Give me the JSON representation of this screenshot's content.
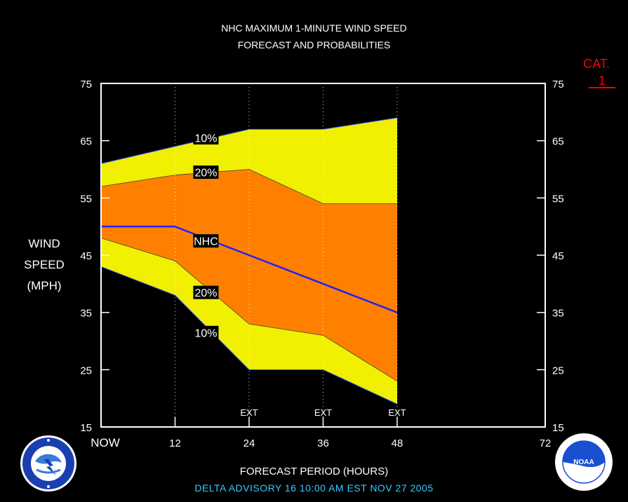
{
  "header": {
    "title_line1": "NHC MAXIMUM 1-MINUTE WIND SPEED",
    "title_line2": "FORECAST AND PROBABILITIES"
  },
  "category": {
    "label": "CAT.",
    "value": "1"
  },
  "ylabel_lines": [
    "WIND",
    "SPEED",
    "(MPH)"
  ],
  "xlabel": "FORECAST PERIOD (HOURS)",
  "footer": "DELTA   ADVISORY  16  10:00  AM  EST  NOV  27  2005",
  "colors": {
    "outer_band": "#f0f000",
    "inner_band": "#ff8000",
    "nhc_line": "#2020ff",
    "frame": "#ffffff",
    "category_text": "#ff0000",
    "footer_text": "#33ccff"
  },
  "logos": {
    "left": "nws-logo",
    "right": "noaa-logo"
  },
  "chart_data": {
    "type": "area",
    "xlim": [
      0,
      72
    ],
    "ylim": [
      15,
      75
    ],
    "x_ticks": [
      0,
      12,
      24,
      36,
      48,
      72
    ],
    "x_tick_labels": [
      "NOW",
      "12",
      "24",
      "36",
      "48",
      "72"
    ],
    "y_ticks": [
      15,
      25,
      35,
      45,
      55,
      65,
      75
    ],
    "ext_markers": [
      24,
      36,
      48
    ],
    "ext_label": "EXT",
    "x": [
      0,
      12,
      24,
      36,
      48
    ],
    "series": [
      {
        "name": "10%",
        "band": "upper",
        "values": [
          61,
          64,
          67,
          67,
          69
        ]
      },
      {
        "name": "20%",
        "band": "upper",
        "values": [
          57,
          59,
          60,
          54,
          54
        ]
      },
      {
        "name": "NHC",
        "band": "forecast",
        "values": [
          50,
          50,
          45,
          40,
          35
        ]
      },
      {
        "name": "20%",
        "band": "lower",
        "values": [
          48,
          44,
          33,
          31,
          23
        ]
      },
      {
        "name": "10%",
        "band": "lower",
        "values": [
          43,
          38,
          25,
          25,
          19
        ]
      }
    ],
    "series_labels": [
      {
        "text": "10%",
        "x": 17,
        "y": 65.5
      },
      {
        "text": "20%",
        "x": 17,
        "y": 59.5
      },
      {
        "text": "NHC",
        "x": 17,
        "y": 47.5
      },
      {
        "text": "20%",
        "x": 17,
        "y": 38.5
      },
      {
        "text": "10%",
        "x": 17,
        "y": 31.5
      }
    ]
  }
}
